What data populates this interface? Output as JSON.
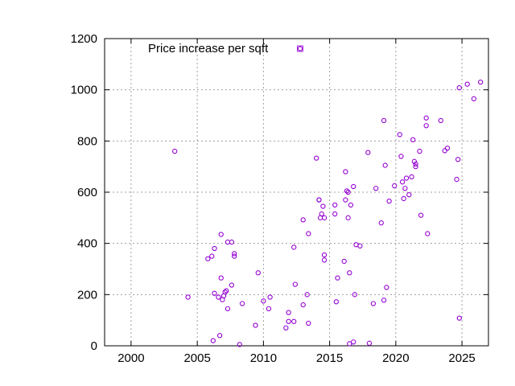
{
  "chart_data": {
    "type": "scatter",
    "title": "",
    "xlabel": "",
    "ylabel": "",
    "xlim": [
      1998,
      2027
    ],
    "ylim": [
      0,
      1200
    ],
    "xticks": [
      2000,
      2005,
      2010,
      2015,
      2020,
      2025
    ],
    "yticks": [
      0,
      200,
      400,
      600,
      800,
      1000,
      1200
    ],
    "grid": true,
    "legend_position": "top-left",
    "series": [
      {
        "name": "Price increase per sqft",
        "color": "#9400d3",
        "marker": "open-circle",
        "points": [
          [
            2003.3,
            760
          ],
          [
            2004.3,
            190
          ],
          [
            2005.8,
            340
          ],
          [
            2006.1,
            350
          ],
          [
            2006.2,
            20
          ],
          [
            2006.3,
            380
          ],
          [
            2006.3,
            205
          ],
          [
            2006.6,
            190
          ],
          [
            2006.7,
            40
          ],
          [
            2006.8,
            265
          ],
          [
            2006.8,
            435
          ],
          [
            2006.9,
            180
          ],
          [
            2007.0,
            195
          ],
          [
            2007.1,
            210
          ],
          [
            2007.2,
            215
          ],
          [
            2007.3,
            145
          ],
          [
            2007.3,
            405
          ],
          [
            2007.6,
            405
          ],
          [
            2007.6,
            237
          ],
          [
            2007.8,
            360
          ],
          [
            2007.8,
            350
          ],
          [
            2008.2,
            5
          ],
          [
            2008.4,
            165
          ],
          [
            2009.4,
            80
          ],
          [
            2009.6,
            285
          ],
          [
            2010.0,
            175
          ],
          [
            2010.4,
            145
          ],
          [
            2010.5,
            190
          ],
          [
            2011.7,
            70
          ],
          [
            2011.9,
            130
          ],
          [
            2011.9,
            95
          ],
          [
            2012.3,
            385
          ],
          [
            2012.3,
            95
          ],
          [
            2012.4,
            240
          ],
          [
            2013.0,
            160
          ],
          [
            2013.0,
            492
          ],
          [
            2013.3,
            200
          ],
          [
            2013.4,
            88
          ],
          [
            2013.4,
            438
          ],
          [
            2014.0,
            733
          ],
          [
            2014.2,
            570
          ],
          [
            2014.2,
            570
          ],
          [
            2014.3,
            500
          ],
          [
            2014.4,
            515
          ],
          [
            2014.5,
            545
          ],
          [
            2014.6,
            500
          ],
          [
            2014.6,
            355
          ],
          [
            2014.6,
            335
          ],
          [
            2015.4,
            515
          ],
          [
            2015.4,
            550
          ],
          [
            2015.5,
            172
          ],
          [
            2015.6,
            265
          ],
          [
            2016.1,
            330
          ],
          [
            2016.2,
            570
          ],
          [
            2016.2,
            680
          ],
          [
            2016.3,
            605
          ],
          [
            2016.4,
            600
          ],
          [
            2016.4,
            500
          ],
          [
            2016.5,
            8
          ],
          [
            2016.5,
            285
          ],
          [
            2016.6,
            550
          ],
          [
            2016.8,
            15
          ],
          [
            2016.8,
            622
          ],
          [
            2016.9,
            200
          ],
          [
            2017.0,
            395
          ],
          [
            2017.3,
            390
          ],
          [
            2017.9,
            755
          ],
          [
            2018.0,
            10
          ],
          [
            2018.3,
            165
          ],
          [
            2018.5,
            615
          ],
          [
            2018.9,
            480
          ],
          [
            2019.1,
            880
          ],
          [
            2019.1,
            178
          ],
          [
            2019.2,
            705
          ],
          [
            2019.3,
            228
          ],
          [
            2019.5,
            565
          ],
          [
            2019.9,
            625
          ],
          [
            2020.3,
            825
          ],
          [
            2020.4,
            740
          ],
          [
            2020.5,
            640
          ],
          [
            2020.6,
            575
          ],
          [
            2020.7,
            615
          ],
          [
            2020.8,
            655
          ],
          [
            2021.0,
            590
          ],
          [
            2021.2,
            660
          ],
          [
            2021.3,
            805
          ],
          [
            2021.4,
            720
          ],
          [
            2021.5,
            710
          ],
          [
            2021.5,
            700
          ],
          [
            2021.8,
            760
          ],
          [
            2021.9,
            510
          ],
          [
            2022.3,
            860
          ],
          [
            2022.3,
            890
          ],
          [
            2022.4,
            438
          ],
          [
            2023.4,
            880
          ],
          [
            2023.7,
            762
          ],
          [
            2023.9,
            772
          ],
          [
            2024.6,
            650
          ],
          [
            2024.7,
            728
          ],
          [
            2024.8,
            1008
          ],
          [
            2024.8,
            108
          ],
          [
            2025.4,
            1022
          ],
          [
            2025.9,
            965
          ],
          [
            2026.4,
            1030
          ]
        ]
      }
    ]
  }
}
